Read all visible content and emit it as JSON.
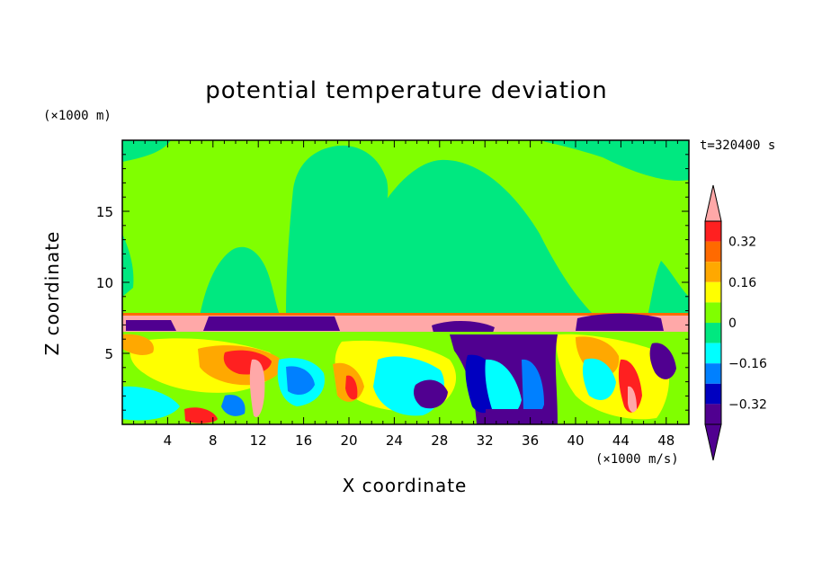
{
  "chart_data": {
    "type": "heatmap",
    "title": "potential temperature deviation",
    "xlabel": "X coordinate",
    "ylabel": "Z coordinate",
    "x_units": "(×1000 m/s)",
    "y_units": "(×1000 m)",
    "time_label": "t=320400 s",
    "xlim": [
      0,
      50
    ],
    "ylim": [
      0,
      20
    ],
    "x_ticks": [
      4,
      8,
      12,
      16,
      20,
      24,
      28,
      32,
      36,
      40,
      44,
      48
    ],
    "y_ticks": [
      5,
      10,
      15
    ],
    "colorbar": {
      "levels": [
        -0.4,
        -0.32,
        -0.24,
        -0.16,
        -0.08,
        0,
        0.08,
        0.16,
        0.24,
        0.32,
        0.4
      ],
      "tick_labels": [
        "0.32",
        "0.16",
        "0",
        "-0.16",
        "-0.32"
      ],
      "colors": [
        "#ffa8a8",
        "#ff2020",
        "#ff6a00",
        "#ffa800",
        "#ffff00",
        "#80ff00",
        "#00e880",
        "#00ffff",
        "#0080ff",
        "#0000c0",
        "#500090"
      ],
      "extend": "both"
    }
  }
}
